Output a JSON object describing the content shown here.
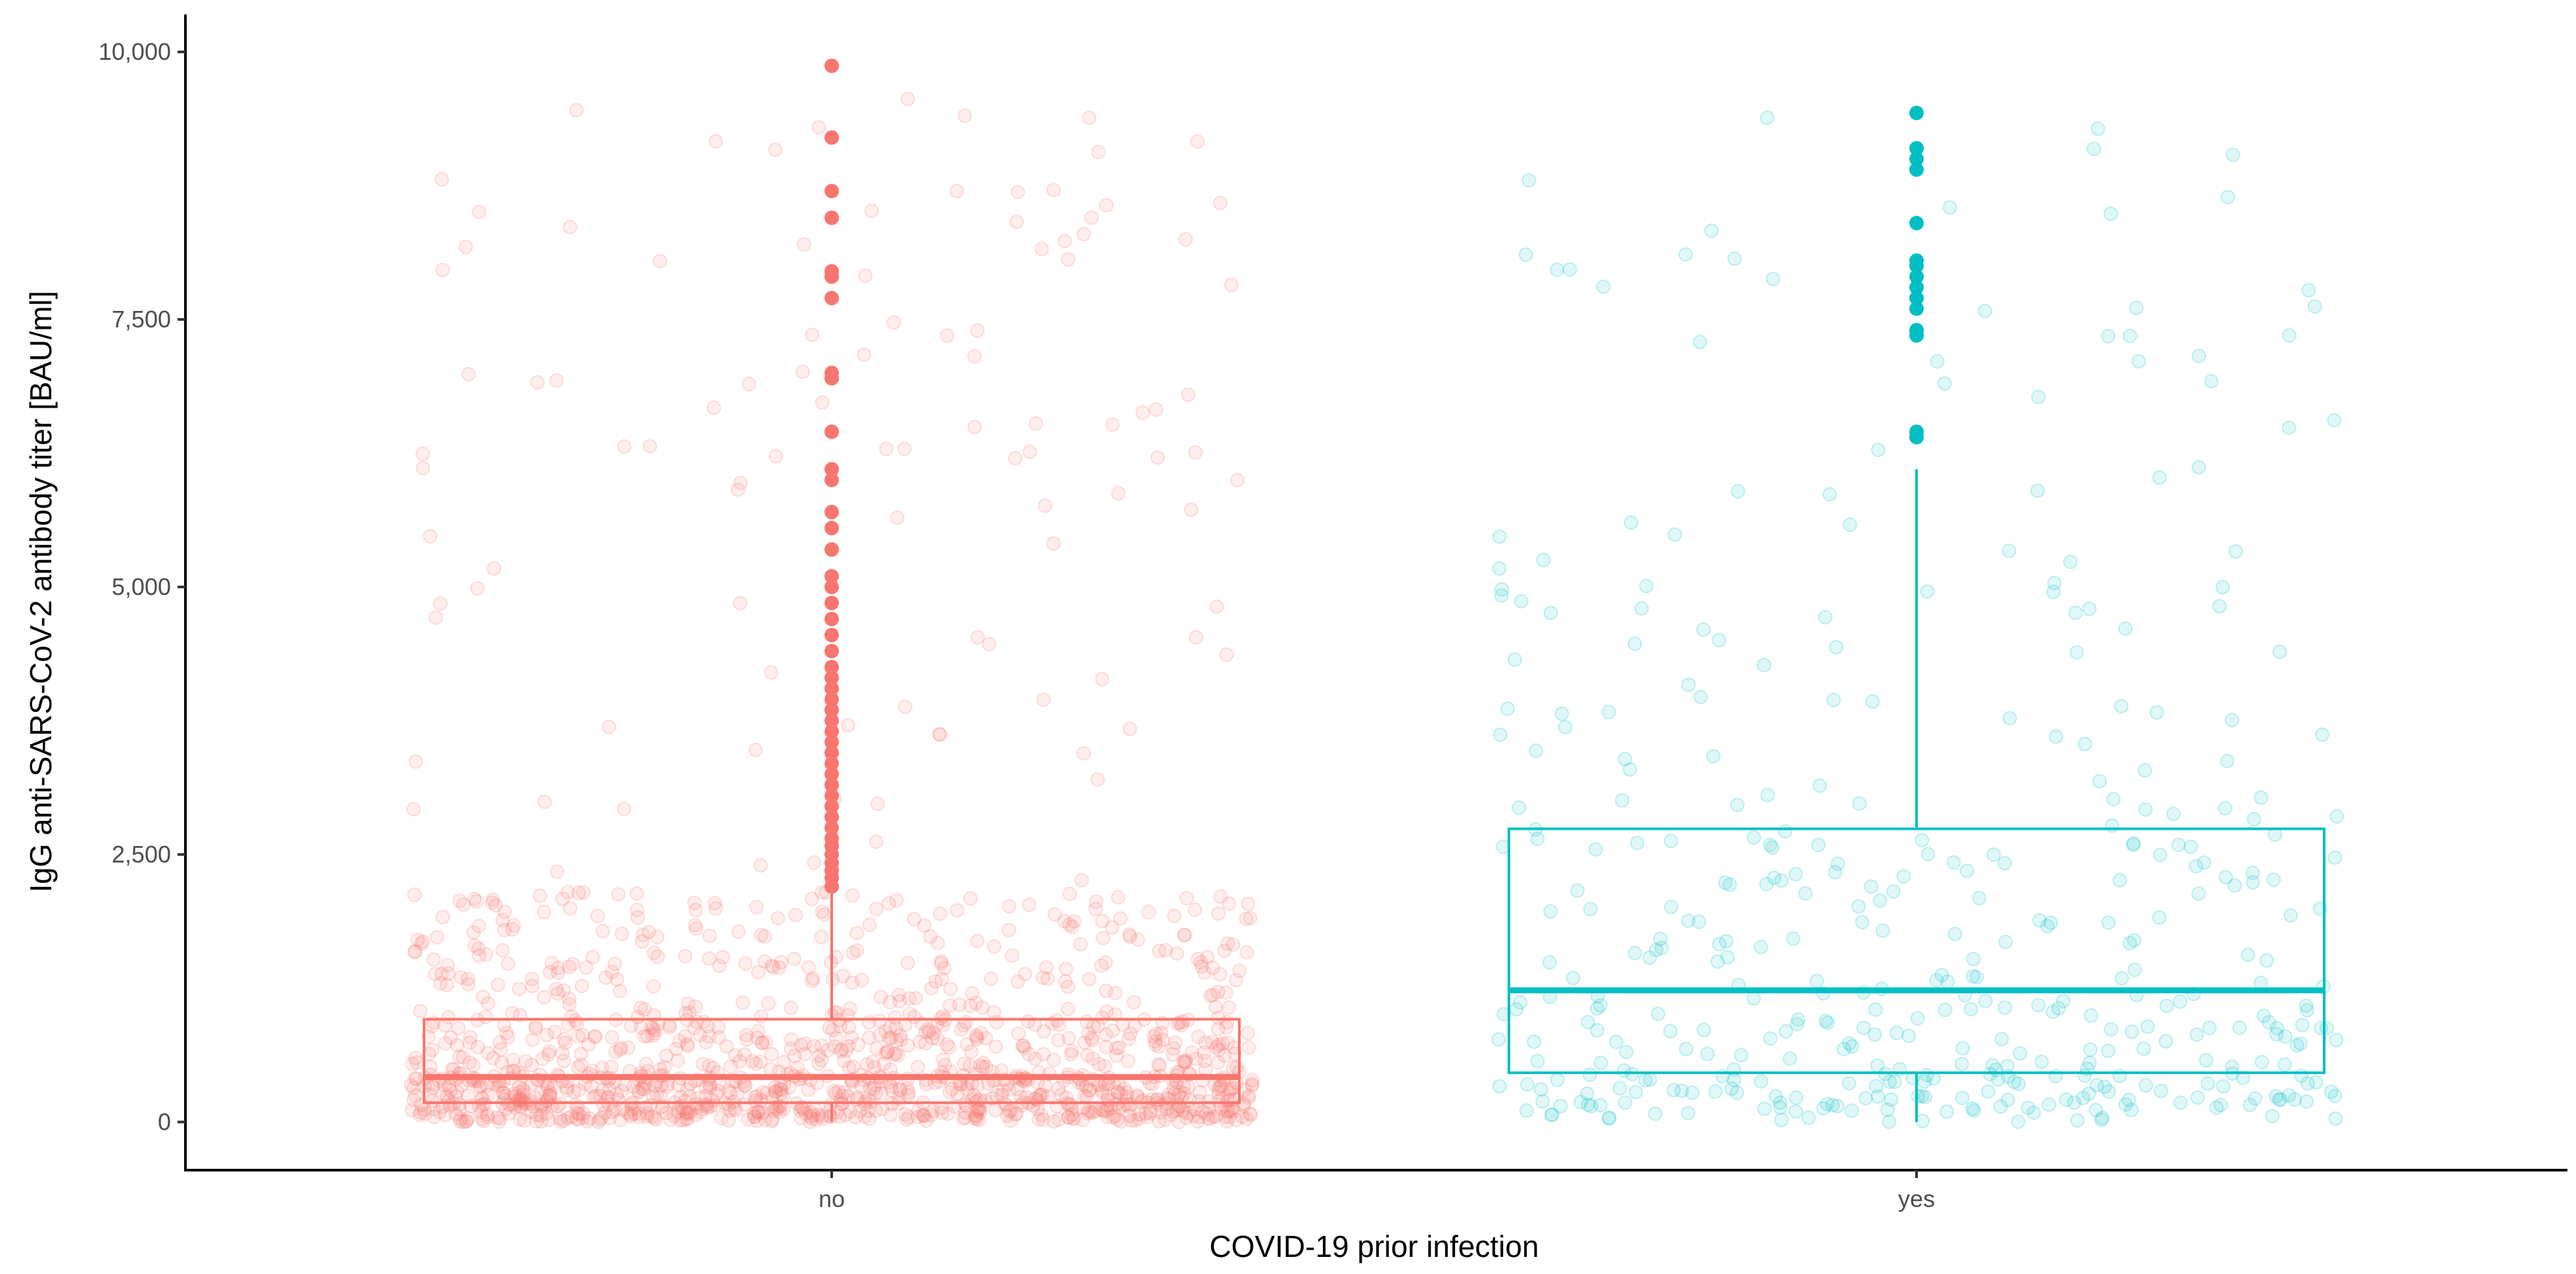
{
  "chart_data": {
    "type": "boxplot",
    "title": "",
    "xlabel": "COVID-19 prior infection",
    "ylabel": "IgG anti-SARS-CoV-2 antibody titer [BAU/ml]",
    "categories": [
      "no",
      "yes"
    ],
    "ylim": [
      -450,
      10350
    ],
    "yticks": [
      0,
      2500,
      5000,
      7500,
      10000
    ],
    "ytick_labels": [
      "0",
      "2,500",
      "5,000",
      "7,500",
      "10,000"
    ],
    "grid": false,
    "legend": "none",
    "groups": [
      {
        "name": "no",
        "color": "#F8766D",
        "n_jitter_points": 1400,
        "q1": 180,
        "median": 420,
        "q3": 960,
        "whisker_low": 0,
        "whisker_high": 2150,
        "outliers": [
          2200,
          2280,
          2350,
          2420,
          2500,
          2580,
          2650,
          2750,
          2850,
          2950,
          3050,
          3150,
          3250,
          3350,
          3450,
          3550,
          3650,
          3750,
          3850,
          3950,
          4050,
          4150,
          4250,
          4400,
          4550,
          4700,
          4850,
          5000,
          5100,
          5350,
          5550,
          5700,
          6000,
          6100,
          6450,
          6950,
          7000,
          7700,
          7900,
          7950,
          8450,
          8700,
          9200,
          9870
        ]
      },
      {
        "name": "yes",
        "color": "#00BFC4",
        "n_jitter_points": 420,
        "q1": 460,
        "median": 1230,
        "q3": 2740,
        "whisker_low": 0,
        "whisker_high": 6100,
        "outliers": [
          6400,
          6450,
          7350,
          7400,
          7600,
          7700,
          7800,
          7900,
          8000,
          8050,
          8400,
          8900,
          9000,
          9100,
          9430
        ]
      }
    ]
  }
}
